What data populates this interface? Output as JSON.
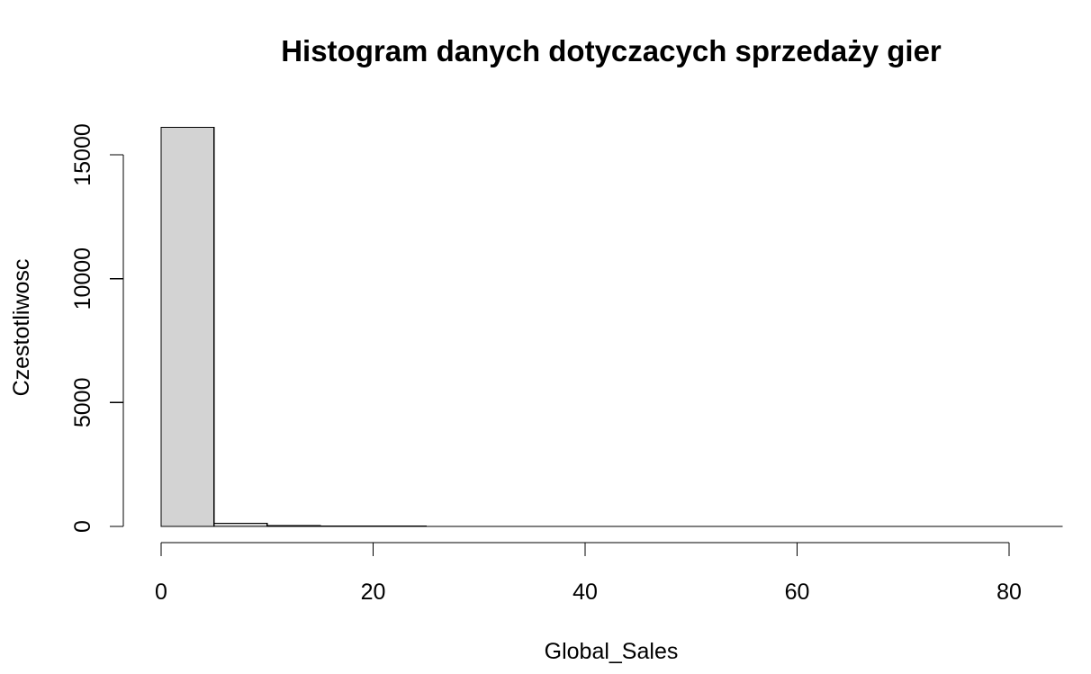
{
  "chart_data": {
    "type": "bar",
    "title": "Histogram danych dotyczacych sprzedaży gier",
    "xlabel": "Global_Sales",
    "ylabel": "Czestotliwosc",
    "bin_width": 5,
    "bins": [
      {
        "start": 0,
        "end": 5,
        "count": 16110
      },
      {
        "start": 5,
        "end": 10,
        "count": 130
      },
      {
        "start": 10,
        "end": 15,
        "count": 27
      },
      {
        "start": 15,
        "end": 20,
        "count": 8
      },
      {
        "start": 20,
        "end": 25,
        "count": 5
      },
      {
        "start": 25,
        "end": 30,
        "count": 3
      },
      {
        "start": 30,
        "end": 35,
        "count": 3
      },
      {
        "start": 35,
        "end": 40,
        "count": 2
      },
      {
        "start": 40,
        "end": 45,
        "count": 0
      },
      {
        "start": 45,
        "end": 50,
        "count": 0
      },
      {
        "start": 50,
        "end": 55,
        "count": 0
      },
      {
        "start": 55,
        "end": 60,
        "count": 0
      },
      {
        "start": 60,
        "end": 65,
        "count": 0
      },
      {
        "start": 65,
        "end": 70,
        "count": 0
      },
      {
        "start": 70,
        "end": 75,
        "count": 0
      },
      {
        "start": 75,
        "end": 80,
        "count": 0
      },
      {
        "start": 80,
        "end": 85,
        "count": 1
      }
    ],
    "xlim": [
      0,
      85
    ],
    "ylim": [
      0,
      16110
    ],
    "x_ticks": [
      0,
      20,
      40,
      60,
      80
    ],
    "x_tick_labels": [
      "0",
      "20",
      "40",
      "60",
      "80"
    ],
    "y_ticks": [
      0,
      5000,
      10000,
      15000
    ],
    "y_tick_labels": [
      "0",
      "5000",
      "10000",
      "15000"
    ],
    "bar_fill": "#d3d3d3",
    "bar_stroke": "#000000",
    "grid": false,
    "legend": "none"
  }
}
